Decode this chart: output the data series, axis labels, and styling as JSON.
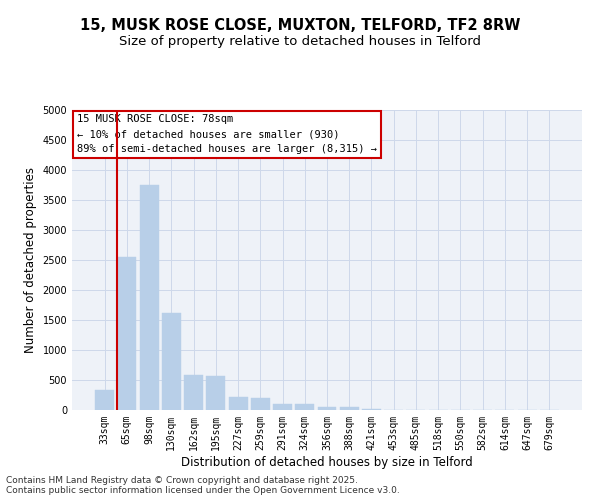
{
  "title_line1": "15, MUSK ROSE CLOSE, MUXTON, TELFORD, TF2 8RW",
  "title_line2": "Size of property relative to detached houses in Telford",
  "xlabel": "Distribution of detached houses by size in Telford",
  "ylabel": "Number of detached properties",
  "categories": [
    "33sqm",
    "65sqm",
    "98sqm",
    "130sqm",
    "162sqm",
    "195sqm",
    "227sqm",
    "259sqm",
    "291sqm",
    "324sqm",
    "356sqm",
    "388sqm",
    "421sqm",
    "453sqm",
    "485sqm",
    "518sqm",
    "550sqm",
    "582sqm",
    "614sqm",
    "647sqm",
    "679sqm"
  ],
  "values": [
    340,
    2550,
    3750,
    1620,
    580,
    570,
    210,
    195,
    100,
    105,
    55,
    45,
    10,
    8,
    5,
    3,
    2,
    1,
    0,
    0,
    0
  ],
  "bar_color": "#b8cfe8",
  "bar_edge_color": "#b8cfe8",
  "vline_color": "#cc0000",
  "vline_linewidth": 1.5,
  "vline_xindex": 1,
  "ylim": [
    0,
    5000
  ],
  "yticks": [
    0,
    500,
    1000,
    1500,
    2000,
    2500,
    3000,
    3500,
    4000,
    4500,
    5000
  ],
  "annotation_line1": "15 MUSK ROSE CLOSE: 78sqm",
  "annotation_line2": "← 10% of detached houses are smaller (930)",
  "annotation_line3": "89% of semi-detached houses are larger (8,315) →",
  "annotation_box_edge_color": "#cc0000",
  "grid_color": "#cdd8ea",
  "background_color": "#eef2f8",
  "footer_line1": "Contains HM Land Registry data © Crown copyright and database right 2025.",
  "footer_line2": "Contains public sector information licensed under the Open Government Licence v3.0.",
  "title_fontsize": 10.5,
  "subtitle_fontsize": 9.5,
  "axis_label_fontsize": 8.5,
  "tick_fontsize": 7,
  "annotation_fontsize": 7.5,
  "footer_fontsize": 6.5
}
